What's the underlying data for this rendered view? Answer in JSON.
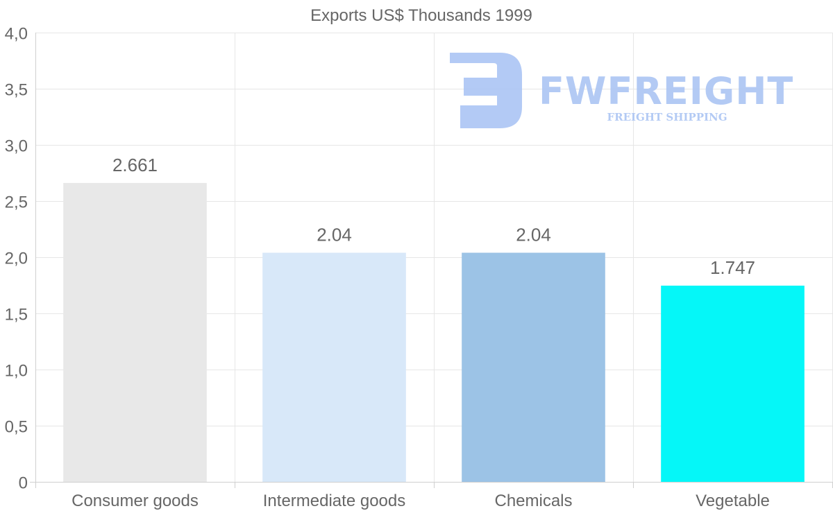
{
  "chart_data": {
    "type": "bar",
    "title": "Exports US$ Thousands 1999",
    "categories": [
      "Consumer goods",
      "Intermediate goods",
      "Chemicals",
      "Vegetable"
    ],
    "values": [
      2.661,
      2.04,
      2.04,
      1.747
    ],
    "value_labels": [
      "2.661",
      "2.04",
      "2.04",
      "1.747"
    ],
    "colors": [
      "#e8e8e8",
      "#d8e8f9",
      "#9cc3e6",
      "#05f7f8"
    ],
    "ylim": [
      0,
      4
    ],
    "y_ticks": [
      0,
      0.5,
      1,
      1.5,
      2,
      2.5,
      3,
      3.5,
      4
    ],
    "y_tick_labels": [
      "0",
      "0,5",
      "1,0",
      "1,5",
      "2,0",
      "2,5",
      "3,0",
      "3,5",
      "4,0"
    ],
    "xlabel": "",
    "ylabel": "",
    "grid": true,
    "legend": "none"
  },
  "watermark": {
    "name": "FWFREIGHT",
    "tagline": "FREIGHT SHIPPING",
    "color": "#adc6f4"
  }
}
